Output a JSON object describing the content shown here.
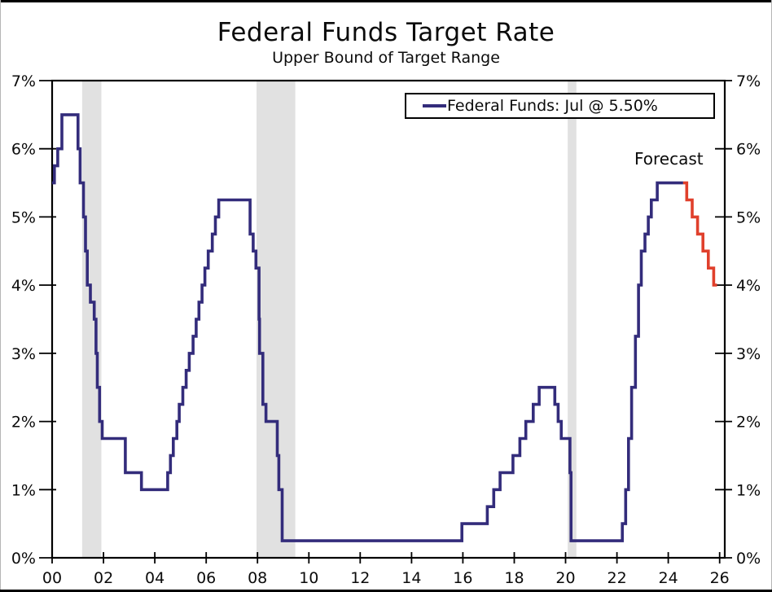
{
  "chart_data": {
    "type": "line",
    "title": "Federal Funds Target Rate",
    "subtitle": "Upper Bound of Target Range",
    "legend": [
      {
        "name": "Federal Funds: Jul @ 5.50%",
        "color": "#332C7B"
      }
    ],
    "annotations": [
      {
        "text": "Forecast",
        "x": 2024.2,
        "y": 5.85
      }
    ],
    "xlim": [
      2000,
      2026.2
    ],
    "ylim": [
      0,
      7
    ],
    "grid": false,
    "legend_position": "top-right",
    "x_ticks": [
      {
        "year": 2000,
        "label": "00"
      },
      {
        "year": 2002,
        "label": "02"
      },
      {
        "year": 2004,
        "label": "04"
      },
      {
        "year": 2006,
        "label": "06"
      },
      {
        "year": 2008,
        "label": "08"
      },
      {
        "year": 2010,
        "label": "10"
      },
      {
        "year": 2012,
        "label": "12"
      },
      {
        "year": 2014,
        "label": "14"
      },
      {
        "year": 2016,
        "label": "16"
      },
      {
        "year": 2018,
        "label": "18"
      },
      {
        "year": 2020,
        "label": "20"
      },
      {
        "year": 2022,
        "label": "22"
      },
      {
        "year": 2024,
        "label": "24"
      },
      {
        "year": 2026,
        "label": "26"
      }
    ],
    "y_ticks": [
      {
        "value": 0,
        "label": "0%"
      },
      {
        "value": 1,
        "label": "1%"
      },
      {
        "value": 2,
        "label": "2%"
      },
      {
        "value": 3,
        "label": "3%"
      },
      {
        "value": 4,
        "label": "4%"
      },
      {
        "value": 5,
        "label": "5%"
      },
      {
        "value": 6,
        "label": "6%"
      },
      {
        "value": 7,
        "label": "7%"
      }
    ],
    "recession_bands": [
      [
        2001.17,
        2001.92
      ],
      [
        2007.96,
        2009.47
      ],
      [
        2020.08,
        2020.42
      ]
    ],
    "band_color": "#E1E1E1",
    "axis_color": "#000000",
    "series": [
      {
        "name": "Federal Funds (history)",
        "color": "#332C7B",
        "points": [
          [
            2000.0,
            5.5
          ],
          [
            2000.09,
            5.75
          ],
          [
            2000.22,
            6.0
          ],
          [
            2000.38,
            6.5
          ],
          [
            2001.01,
            6.0
          ],
          [
            2001.09,
            5.5
          ],
          [
            2001.22,
            5.0
          ],
          [
            2001.3,
            4.5
          ],
          [
            2001.37,
            4.0
          ],
          [
            2001.49,
            3.75
          ],
          [
            2001.64,
            3.5
          ],
          [
            2001.71,
            3.0
          ],
          [
            2001.76,
            2.5
          ],
          [
            2001.85,
            2.0
          ],
          [
            2001.95,
            1.75
          ],
          [
            2002.85,
            1.25
          ],
          [
            2003.48,
            1.0
          ],
          [
            2004.5,
            1.25
          ],
          [
            2004.61,
            1.5
          ],
          [
            2004.72,
            1.75
          ],
          [
            2004.86,
            2.0
          ],
          [
            2004.95,
            2.25
          ],
          [
            2005.09,
            2.5
          ],
          [
            2005.22,
            2.75
          ],
          [
            2005.34,
            3.0
          ],
          [
            2005.49,
            3.25
          ],
          [
            2005.61,
            3.5
          ],
          [
            2005.72,
            3.75
          ],
          [
            2005.84,
            4.0
          ],
          [
            2005.95,
            4.25
          ],
          [
            2006.08,
            4.5
          ],
          [
            2006.24,
            4.75
          ],
          [
            2006.36,
            5.0
          ],
          [
            2006.49,
            5.25
          ],
          [
            2007.71,
            4.75
          ],
          [
            2007.83,
            4.5
          ],
          [
            2007.94,
            4.25
          ],
          [
            2008.06,
            3.5
          ],
          [
            2008.08,
            3.0
          ],
          [
            2008.21,
            2.25
          ],
          [
            2008.33,
            2.0
          ],
          [
            2008.77,
            1.5
          ],
          [
            2008.83,
            1.0
          ],
          [
            2008.96,
            0.25
          ],
          [
            2015.96,
            0.5
          ],
          [
            2016.95,
            0.75
          ],
          [
            2017.2,
            1.0
          ],
          [
            2017.45,
            1.25
          ],
          [
            2017.95,
            1.5
          ],
          [
            2018.22,
            1.75
          ],
          [
            2018.45,
            2.0
          ],
          [
            2018.74,
            2.25
          ],
          [
            2018.97,
            2.5
          ],
          [
            2019.58,
            2.25
          ],
          [
            2019.71,
            2.0
          ],
          [
            2019.83,
            1.75
          ],
          [
            2020.17,
            1.25
          ],
          [
            2020.21,
            0.25
          ],
          [
            2022.21,
            0.5
          ],
          [
            2022.34,
            1.0
          ],
          [
            2022.45,
            1.75
          ],
          [
            2022.57,
            2.5
          ],
          [
            2022.72,
            3.25
          ],
          [
            2022.84,
            4.0
          ],
          [
            2022.95,
            4.5
          ],
          [
            2023.09,
            4.75
          ],
          [
            2023.22,
            5.0
          ],
          [
            2023.34,
            5.25
          ],
          [
            2023.57,
            5.5
          ],
          [
            2024.58,
            5.5
          ]
        ]
      },
      {
        "name": "Federal Funds (forecast)",
        "color": "#E0402C",
        "points": [
          [
            2024.58,
            5.5
          ],
          [
            2024.72,
            5.25
          ],
          [
            2024.93,
            5.0
          ],
          [
            2025.14,
            4.75
          ],
          [
            2025.35,
            4.5
          ],
          [
            2025.56,
            4.25
          ],
          [
            2025.77,
            4.0
          ],
          [
            2025.9,
            4.0
          ]
        ]
      }
    ]
  }
}
